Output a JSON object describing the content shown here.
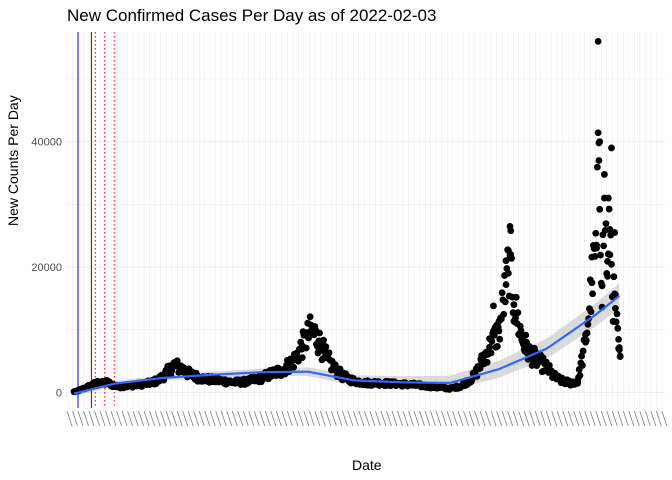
{
  "chart_data": {
    "type": "scatter",
    "title": "New Confirmed Cases Per Day as of 2022-02-03",
    "xlabel": "Date",
    "ylabel": "New Counts Per Day",
    "x_range": [
      "2020-03-01",
      "2022-03-31"
    ],
    "ylim": [
      -2500,
      57500
    ],
    "y_ticks": [
      0,
      20000,
      40000
    ],
    "x_tick_labels_rotated_illegible": true,
    "grid": true,
    "colors": {
      "points": "#000000",
      "smooth_line": "#3366FF",
      "smooth_band": "#BDBDBD",
      "vline_solid_blue": "#0000FF",
      "vline_solid_red": "#8B0000",
      "vline_dotted_red": "#FF0000",
      "grid": "#EBEBEB"
    },
    "vertical_lines": [
      {
        "date": "2020-03-15",
        "style": "solid",
        "color": "#0000FF"
      },
      {
        "date": "2020-04-01",
        "style": "solid",
        "color": "#8B0000"
      },
      {
        "date": "2020-04-06",
        "style": "dotted",
        "color": "#FF0000"
      },
      {
        "date": "2020-04-18",
        "style": "dotted",
        "color": "#FF0000"
      },
      {
        "date": "2020-04-30",
        "style": "dotted",
        "color": "#FF0000"
      }
    ],
    "series": [
      {
        "type": "points",
        "x": [
          "2020-03-10",
          "2020-03-16",
          "2020-03-22",
          "2020-03-28",
          "2020-04-03",
          "2020-04-09",
          "2020-04-15",
          "2020-04-21",
          "2020-04-27",
          "2020-05-05",
          "2020-05-15",
          "2020-05-25",
          "2020-06-05",
          "2020-06-15",
          "2020-06-25",
          "2020-07-05",
          "2020-07-15",
          "2020-07-25",
          "2020-08-01",
          "2020-08-10",
          "2020-08-20",
          "2020-09-01",
          "2020-09-15",
          "2020-10-01",
          "2020-10-15",
          "2020-11-01",
          "2020-11-15",
          "2020-12-01",
          "2020-12-15",
          "2020-12-25",
          "2021-01-05",
          "2021-01-15",
          "2021-01-25",
          "2021-02-05",
          "2021-02-15",
          "2021-03-01",
          "2021-03-15",
          "2021-04-01",
          "2021-04-15",
          "2021-05-01",
          "2021-05-15",
          "2021-06-01",
          "2021-06-15",
          "2021-07-01",
          "2021-07-15",
          "2021-08-01",
          "2021-08-10",
          "2021-08-20",
          "2021-09-01",
          "2021-09-10",
          "2021-09-15",
          "2021-09-20",
          "2021-10-01",
          "2021-10-10",
          "2021-10-20",
          "2021-11-01",
          "2021-11-10",
          "2021-11-20",
          "2021-12-01",
          "2021-12-10",
          "2021-12-20",
          "2021-12-28",
          "2022-01-03",
          "2022-01-06",
          "2022-01-10",
          "2022-01-13",
          "2022-01-17",
          "2022-01-20",
          "2022-01-24",
          "2022-01-27",
          "2022-01-31",
          "2022-02-02"
        ],
        "y": [
          100,
          300,
          600,
          900,
          1200,
          1500,
          1400,
          1600,
          1200,
          900,
          1000,
          1100,
          1300,
          1500,
          1900,
          3000,
          4300,
          3800,
          3100,
          2600,
          2200,
          2000,
          1800,
          1600,
          1700,
          2200,
          2900,
          3600,
          5200,
          7400,
          9800,
          8200,
          5500,
          3600,
          2500,
          1800,
          1500,
          1500,
          1400,
          1300,
          1200,
          1000,
          800,
          600,
          1000,
          2600,
          4800,
          7200,
          9800,
          17200,
          21800,
          14000,
          8300,
          6200,
          5100,
          3900,
          2500,
          1800,
          1500,
          1700,
          8000,
          17500,
          23000,
          39800,
          17000,
          31000,
          18500,
          26000,
          15300,
          13400,
          7000,
          5700
        ]
      },
      {
        "type": "smooth",
        "x": [
          "2020-03-10",
          "2020-05-01",
          "2020-07-01",
          "2020-09-01",
          "2020-11-01",
          "2021-01-01",
          "2021-03-01",
          "2021-05-01",
          "2021-07-01",
          "2021-09-01",
          "2021-11-01",
          "2022-01-01",
          "2022-02-02"
        ],
        "y": [
          -200,
          1400,
          2300,
          2800,
          3200,
          3300,
          1900,
          1600,
          1500,
          3700,
          7000,
          12300,
          15500
        ]
      }
    ]
  }
}
